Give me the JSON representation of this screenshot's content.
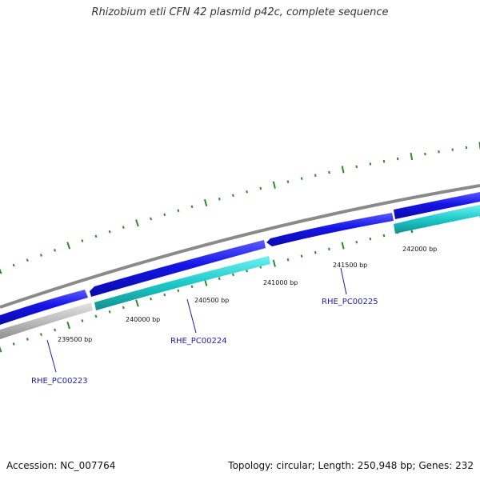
{
  "title": "Rhizobium etli CFN 42 plasmid p42c, complete sequence",
  "ticks": [
    {
      "label": "239500 bp"
    },
    {
      "label": "240000 bp"
    },
    {
      "label": "240500 bp"
    },
    {
      "label": "241000 bp"
    },
    {
      "label": "241500 bp"
    },
    {
      "label": "242000 bp"
    }
  ],
  "genes": [
    {
      "label": "RHE_PC00223"
    },
    {
      "label": "RHE_PC00224"
    },
    {
      "label": "RHE_PC00225"
    }
  ],
  "colors": {
    "backbone": "#8a8a8a",
    "forward_strand": "#1414e6",
    "reverse_strand": "#1ec9c9",
    "pseudo": "#c0c0c0",
    "ticks": "#2a8a2a",
    "gene_label": "#1b1bb0"
  },
  "footer": {
    "accession": "Accession: NC_007764",
    "summary": "Topology: circular; Length: 250,948 bp; Genes: 232"
  }
}
